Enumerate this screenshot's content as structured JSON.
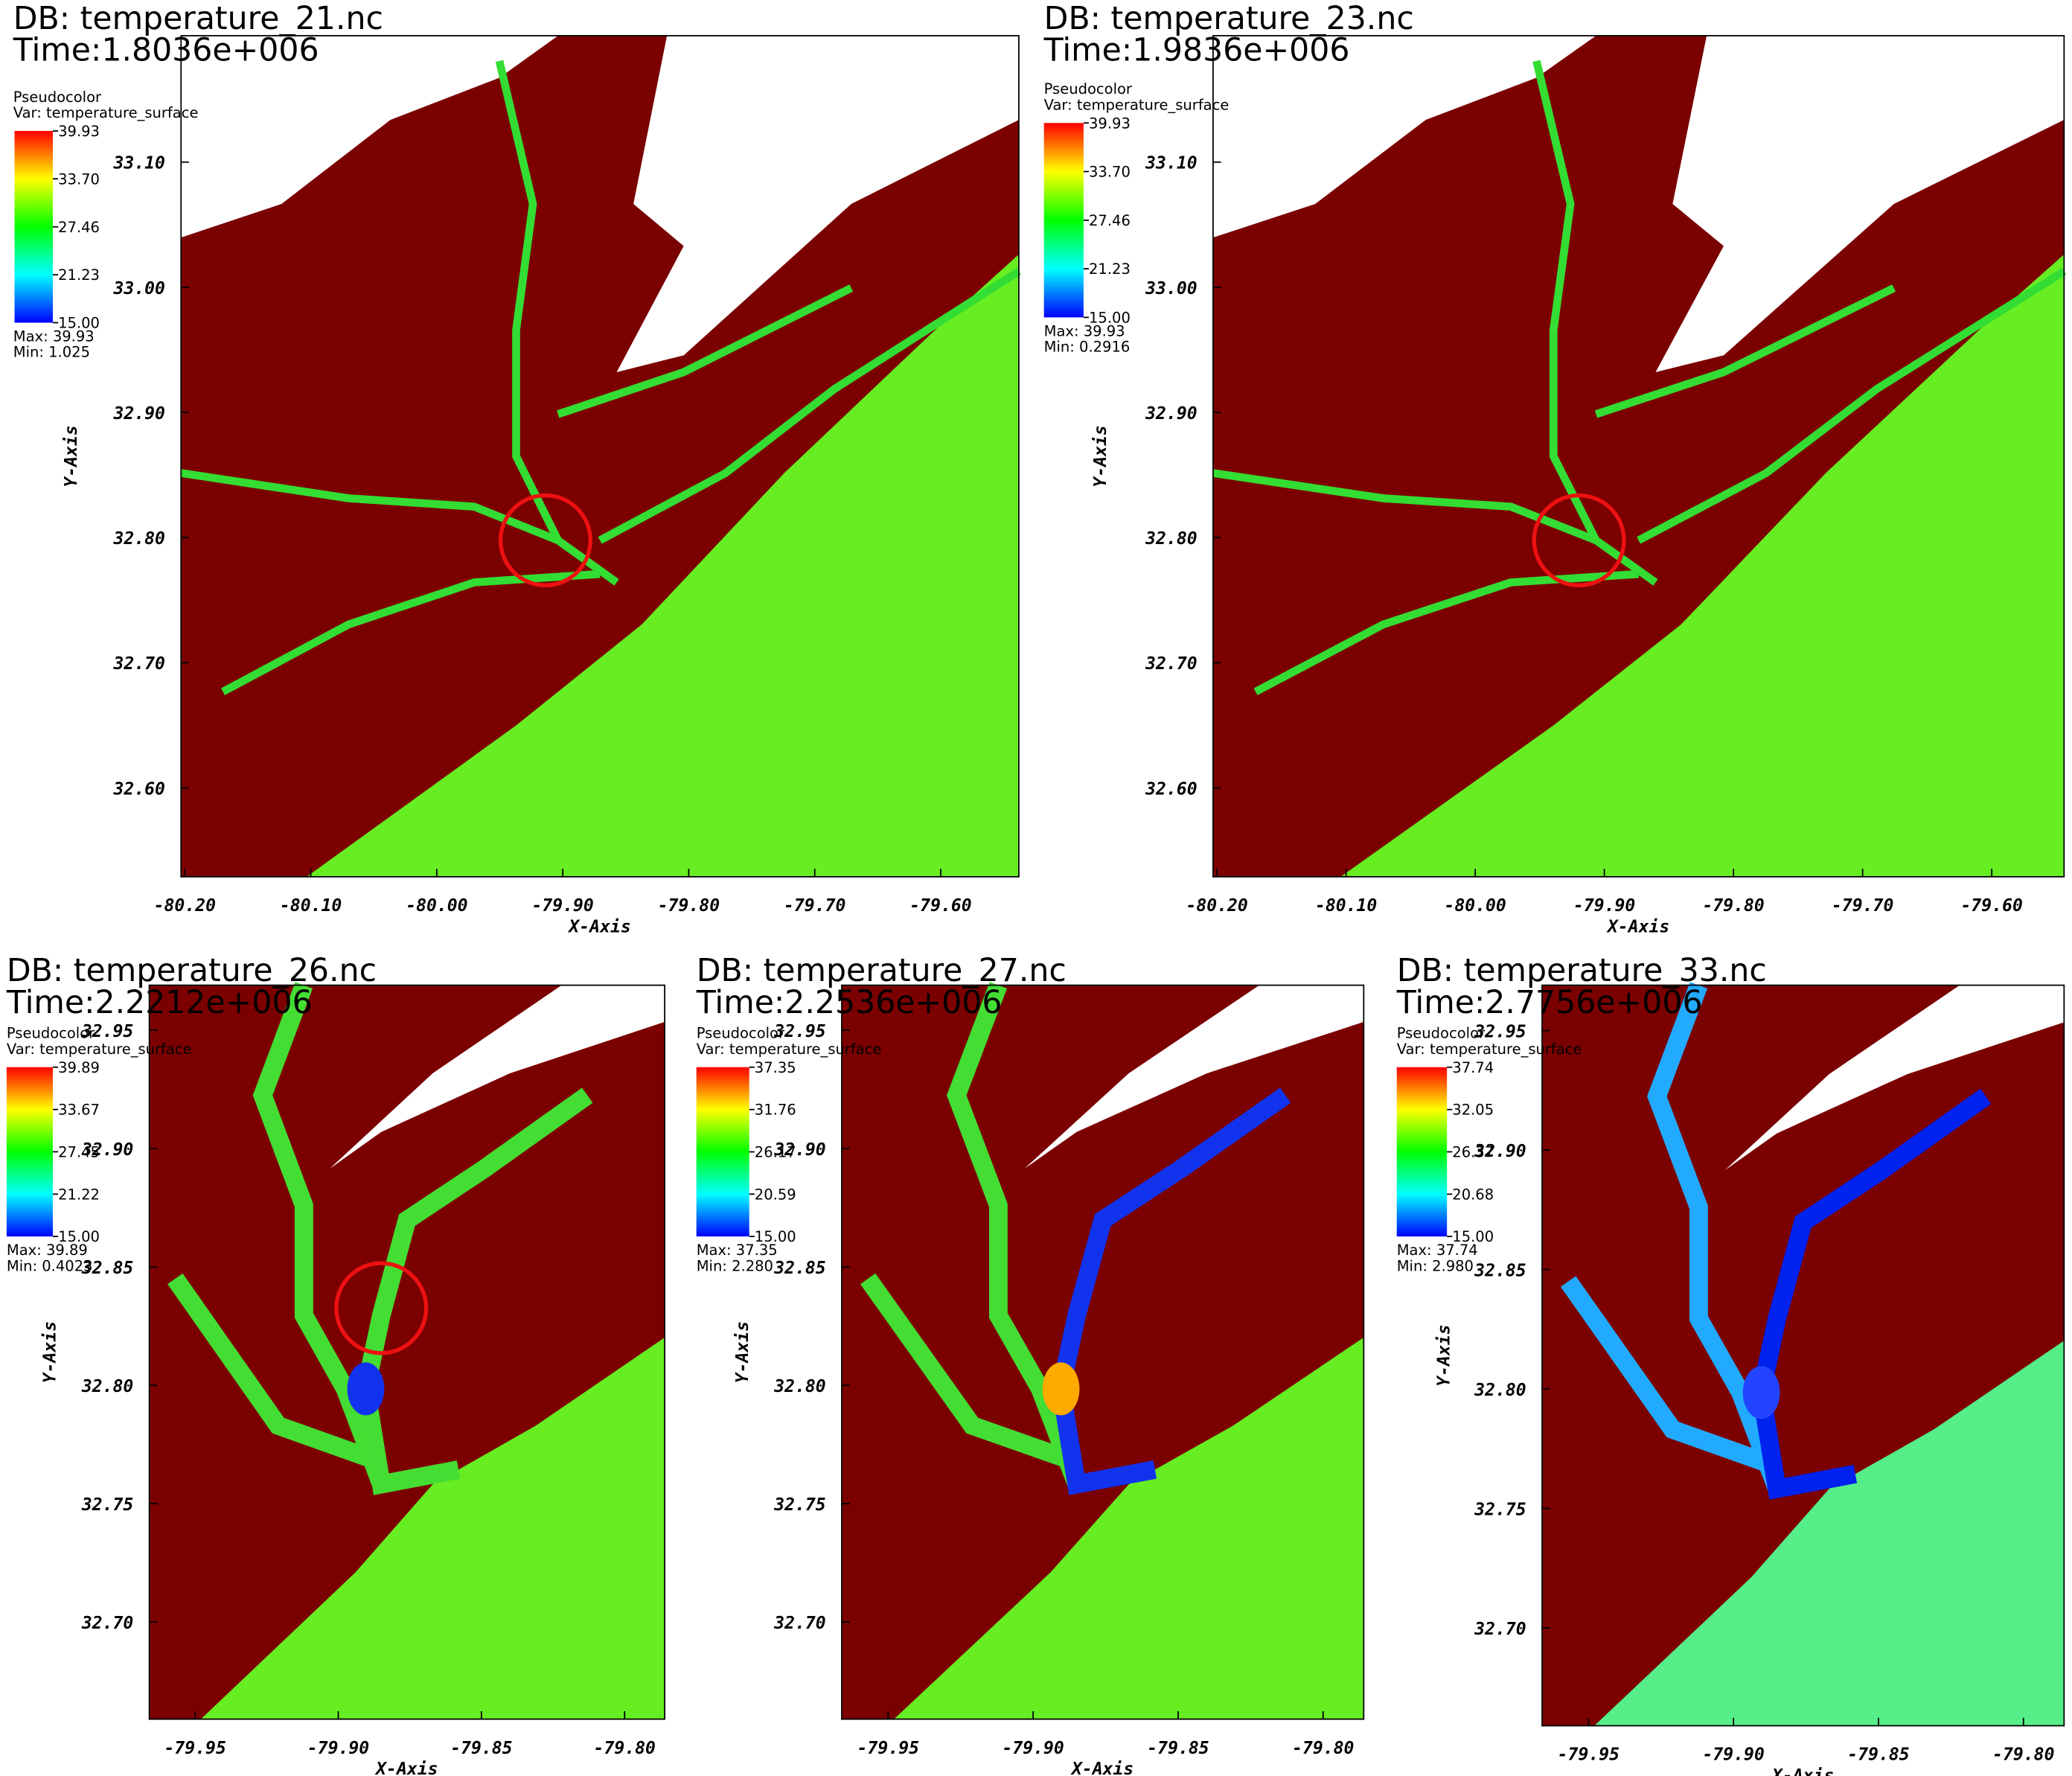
{
  "chart_data": [
    {
      "type": "pseudocolor",
      "title": "DB: temperature_21.nc",
      "subtitle": "Time:1.8036e+006",
      "legend_title": "Pseudocolor",
      "legend_var": "Var: temperature_surface",
      "colorbar_ticks": [
        {
          "value": 15,
          "label": "15.00"
        },
        {
          "value": 21.23,
          "label": "21.23"
        },
        {
          "value": 27.46,
          "label": "27.46"
        },
        {
          "value": 33.7,
          "label": "33.70"
        },
        {
          "value": 39.93,
          "label": "39.93"
        }
      ],
      "max_label": "Max:  39.93",
      "min_label": "Min:  1.025",
      "xlabel": "X-Axis",
      "ylabel": "Y-Axis",
      "xlim": [
        -80.203,
        -79.538
      ],
      "ylim": [
        32.529,
        33.201
      ],
      "xticks": [
        {
          "value": -80.2,
          "label": "-80.20"
        },
        {
          "value": -80.1,
          "label": "-80.10"
        },
        {
          "value": -80,
          "label": "-80.00"
        },
        {
          "value": -79.9,
          "label": "-79.90"
        },
        {
          "value": -79.8,
          "label": "-79.80"
        },
        {
          "value": -79.7,
          "label": "-79.70"
        },
        {
          "value": -79.6,
          "label": "-79.60"
        }
      ],
      "yticks": [
        {
          "value": 32.6,
          "label": "32.60"
        },
        {
          "value": 32.7,
          "label": "32.70"
        },
        {
          "value": 32.8,
          "label": "32.80"
        },
        {
          "value": 32.9,
          "label": "32.90"
        },
        {
          "value": 33,
          "label": "33.00"
        },
        {
          "value": 33.1,
          "label": "33.10"
        }
      ]
    },
    {
      "type": "pseudocolor",
      "title": "DB: temperature_23.nc",
      "subtitle": "Time:1.9836e+006",
      "legend_title": "Pseudocolor",
      "legend_var": "Var: temperature_surface",
      "colorbar_ticks": [
        {
          "value": 15,
          "label": "15.00"
        },
        {
          "value": 21.23,
          "label": "21.23"
        },
        {
          "value": 27.46,
          "label": "27.46"
        },
        {
          "value": 33.7,
          "label": "33.70"
        },
        {
          "value": 39.93,
          "label": "39.93"
        }
      ],
      "max_label": "Max:  39.93",
      "min_label": "Min:  0.2916",
      "xlabel": "X-Axis",
      "ylabel": "Y-Axis",
      "xlim": [
        -80.203,
        -79.544
      ],
      "ylim": [
        32.529,
        33.201
      ],
      "xticks": [
        {
          "value": -80.2,
          "label": "-80.20"
        },
        {
          "value": -80.1,
          "label": "-80.10"
        },
        {
          "value": -80,
          "label": "-80.00"
        },
        {
          "value": -79.9,
          "label": "-79.90"
        },
        {
          "value": -79.8,
          "label": "-79.80"
        },
        {
          "value": -79.7,
          "label": "-79.70"
        },
        {
          "value": -79.6,
          "label": "-79.60"
        }
      ],
      "yticks": [
        {
          "value": 32.6,
          "label": "32.60"
        },
        {
          "value": 32.7,
          "label": "32.70"
        },
        {
          "value": 32.8,
          "label": "32.80"
        },
        {
          "value": 32.9,
          "label": "32.90"
        },
        {
          "value": 33,
          "label": "33.00"
        },
        {
          "value": 33.1,
          "label": "33.10"
        }
      ]
    },
    {
      "type": "pseudocolor",
      "title": "DB: temperature_26.nc",
      "subtitle": "Time:2.2212e+006",
      "legend_title": "Pseudocolor",
      "legend_var": "Var: temperature_surface",
      "colorbar_ticks": [
        {
          "value": 15,
          "label": "15.00"
        },
        {
          "value": 21.22,
          "label": "21.22"
        },
        {
          "value": 27.45,
          "label": "27.45"
        },
        {
          "value": 33.67,
          "label": "33.67"
        },
        {
          "value": 39.89,
          "label": "39.89"
        }
      ],
      "max_label": "Max:  39.89",
      "min_label": "Min:  0.4023",
      "xlabel": "X-Axis",
      "ylabel": "Y-Axis",
      "xlim": [
        -79.966,
        -79.786
      ],
      "ylim": [
        32.659,
        32.969
      ],
      "xticks": [
        {
          "value": -79.95,
          "label": "-79.95"
        },
        {
          "value": -79.9,
          "label": "-79.90"
        },
        {
          "value": -79.85,
          "label": "-79.85"
        },
        {
          "value": -79.8,
          "label": "-79.80"
        }
      ],
      "yticks": [
        {
          "value": 32.7,
          "label": "32.70"
        },
        {
          "value": 32.75,
          "label": "32.75"
        },
        {
          "value": 32.8,
          "label": "32.80"
        },
        {
          "value": 32.85,
          "label": "32.85"
        },
        {
          "value": 32.9,
          "label": "32.90"
        },
        {
          "value": 32.95,
          "label": "32.95"
        }
      ]
    },
    {
      "type": "pseudocolor",
      "title": "DB: temperature_27.nc",
      "subtitle": "Time:2.2536e+006",
      "legend_title": "Pseudocolor",
      "legend_var": "Var: temperature_surface",
      "colorbar_ticks": [
        {
          "value": 15,
          "label": "15.00"
        },
        {
          "value": 20.59,
          "label": "20.59"
        },
        {
          "value": 26.17,
          "label": "26.17"
        },
        {
          "value": 31.76,
          "label": "31.76"
        },
        {
          "value": 37.35,
          "label": "37.35"
        }
      ],
      "max_label": "Max:  37.35",
      "min_label": "Min:  2.280",
      "xlabel": "X-Axis",
      "ylabel": "Y-Axis",
      "xlim": [
        -79.966,
        -79.786
      ],
      "ylim": [
        32.659,
        32.969
      ],
      "xticks": [
        {
          "value": -79.95,
          "label": "-79.95"
        },
        {
          "value": -79.9,
          "label": "-79.90"
        },
        {
          "value": -79.85,
          "label": "-79.85"
        },
        {
          "value": -79.8,
          "label": "-79.80"
        }
      ],
      "yticks": [
        {
          "value": 32.7,
          "label": "32.70"
        },
        {
          "value": 32.75,
          "label": "32.75"
        },
        {
          "value": 32.8,
          "label": "32.80"
        },
        {
          "value": 32.85,
          "label": "32.85"
        },
        {
          "value": 32.9,
          "label": "32.90"
        },
        {
          "value": 32.95,
          "label": "32.95"
        }
      ]
    },
    {
      "type": "pseudocolor",
      "title": "DB: temperature_33.nc",
      "subtitle": "Time:2.7756e+006",
      "legend_title": "Pseudocolor",
      "legend_var": "Var: temperature_surface",
      "colorbar_ticks": [
        {
          "value": 15,
          "label": "15.00"
        },
        {
          "value": 20.68,
          "label": "20.68"
        },
        {
          "value": 26.37,
          "label": "26.37"
        },
        {
          "value": 32.05,
          "label": "32.05"
        },
        {
          "value": 37.74,
          "label": "37.74"
        }
      ],
      "max_label": "Max:  37.74",
      "min_label": "Min:  2.980",
      "xlabel": "X-Axis",
      "ylabel": "Y-Axis",
      "xlim": [
        -79.966,
        -79.786
      ],
      "ylim": [
        32.659,
        32.969
      ],
      "xticks": [
        {
          "value": -79.95,
          "label": "-79.95"
        },
        {
          "value": -79.9,
          "label": "-79.90"
        },
        {
          "value": -79.85,
          "label": "-79.85"
        },
        {
          "value": -79.8,
          "label": "-79.80"
        }
      ],
      "yticks": [
        {
          "value": 32.7,
          "label": "32.70"
        },
        {
          "value": 32.75,
          "label": "32.75"
        },
        {
          "value": 32.8,
          "label": "32.80"
        },
        {
          "value": 32.85,
          "label": "32.85"
        },
        {
          "value": 32.9,
          "label": "32.90"
        },
        {
          "value": 32.95,
          "label": "32.95"
        }
      ]
    }
  ]
}
